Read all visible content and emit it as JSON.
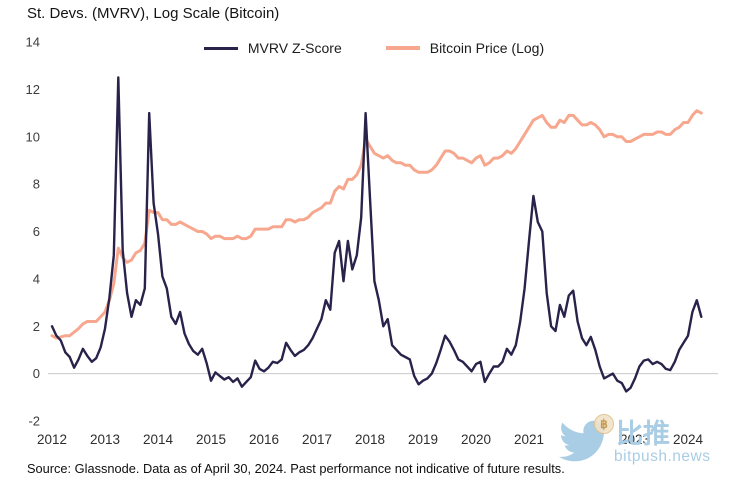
{
  "title": "St. Devs. (MVRV), Log Scale (Bitcoin)",
  "legend": [
    {
      "label": "MVRV Z-Score",
      "color": "#29224a"
    },
    {
      "label": "Bitcoin Price (Log)",
      "color": "#f7a78e"
    }
  ],
  "footer": "Source: Glassnode. Data as of April 30, 2024. Past performance not indicative of future results.",
  "watermark": {
    "name": "比推",
    "domain": "bitpush.news",
    "coin_symbol": "฿",
    "color": "#a9cde4"
  },
  "chart_data": {
    "type": "line",
    "title": "St. Devs. (MVRV), Log Scale (Bitcoin)",
    "xlabel": "",
    "ylabel": "",
    "ylim": [
      -2,
      14
    ],
    "xlim": [
      2011.85,
      2024.6
    ],
    "grid": "horizontal zero-line only",
    "legend_position": "top-center",
    "x_start": 2012,
    "points_per_year": 12,
    "x_ticks": [
      "2012",
      "2013",
      "2014",
      "2015",
      "2016",
      "2017",
      "2018",
      "2019",
      "2020",
      "2021",
      "2022",
      "2023",
      "2024"
    ],
    "y_ticks": [
      14,
      12,
      10,
      8,
      6,
      4,
      2,
      0,
      -2
    ],
    "series": [
      {
        "name": "MVRV Z-Score",
        "color": "#29224a",
        "width": 2.4,
        "values": [
          2.0,
          1.6,
          1.4,
          0.9,
          0.7,
          0.25,
          0.6,
          1.05,
          0.75,
          0.5,
          0.65,
          1.1,
          1.9,
          3.2,
          5.0,
          12.5,
          5.2,
          3.4,
          2.4,
          3.1,
          2.9,
          3.6,
          11.0,
          7.2,
          5.9,
          4.1,
          3.6,
          2.4,
          2.1,
          2.6,
          1.7,
          1.25,
          0.95,
          0.8,
          1.05,
          0.45,
          -0.3,
          0.05,
          -0.1,
          -0.25,
          -0.15,
          -0.35,
          -0.2,
          -0.55,
          -0.35,
          -0.15,
          0.55,
          0.2,
          0.1,
          0.25,
          0.5,
          0.45,
          0.6,
          1.3,
          1.0,
          0.75,
          0.9,
          1.0,
          1.2,
          1.5,
          1.9,
          2.3,
          3.1,
          2.7,
          5.1,
          5.6,
          3.9,
          5.6,
          4.4,
          5.0,
          6.6,
          11.0,
          7.4,
          3.9,
          3.1,
          2.0,
          2.3,
          1.2,
          1.0,
          0.8,
          0.7,
          0.6,
          -0.1,
          -0.45,
          -0.3,
          -0.2,
          0.0,
          0.45,
          1.0,
          1.6,
          1.35,
          1.0,
          0.6,
          0.5,
          0.3,
          0.1,
          0.4,
          0.5,
          -0.35,
          0.0,
          0.3,
          0.3,
          0.5,
          1.05,
          0.8,
          1.2,
          2.2,
          3.6,
          5.6,
          7.5,
          6.4,
          6.0,
          3.4,
          2.0,
          1.8,
          2.9,
          2.4,
          3.3,
          3.5,
          2.2,
          1.5,
          1.2,
          1.55,
          1.0,
          0.3,
          -0.2,
          -0.1,
          0.0,
          -0.3,
          -0.4,
          -0.75,
          -0.6,
          -0.2,
          0.3,
          0.55,
          0.6,
          0.4,
          0.5,
          0.4,
          0.2,
          0.15,
          0.5,
          1.0,
          1.3,
          1.6,
          2.6,
          3.1,
          2.4
        ]
      },
      {
        "name": "Bitcoin Price (Log)",
        "color": "#f7a78e",
        "width": 3,
        "values": [
          1.6,
          1.5,
          1.55,
          1.6,
          1.6,
          1.75,
          1.9,
          2.1,
          2.2,
          2.2,
          2.2,
          2.4,
          2.6,
          3.1,
          3.8,
          5.3,
          4.9,
          4.7,
          4.8,
          5.1,
          5.2,
          5.5,
          6.9,
          6.8,
          6.8,
          6.5,
          6.5,
          6.3,
          6.3,
          6.4,
          6.3,
          6.2,
          6.1,
          6.0,
          6.0,
          5.9,
          5.7,
          5.8,
          5.8,
          5.7,
          5.7,
          5.7,
          5.8,
          5.7,
          5.7,
          5.8,
          6.1,
          6.1,
          6.1,
          6.1,
          6.2,
          6.2,
          6.2,
          6.5,
          6.5,
          6.4,
          6.5,
          6.5,
          6.6,
          6.8,
          6.9,
          7.0,
          7.2,
          7.2,
          7.7,
          7.9,
          7.8,
          8.2,
          8.2,
          8.4,
          8.8,
          9.9,
          9.6,
          9.3,
          9.2,
          9.1,
          9.2,
          9.0,
          8.9,
          8.9,
          8.8,
          8.8,
          8.6,
          8.5,
          8.5,
          8.5,
          8.6,
          8.8,
          9.1,
          9.4,
          9.4,
          9.3,
          9.1,
          9.1,
          9.0,
          8.9,
          9.1,
          9.2,
          8.8,
          8.9,
          9.1,
          9.1,
          9.2,
          9.4,
          9.3,
          9.5,
          9.8,
          10.1,
          10.4,
          10.7,
          10.8,
          10.9,
          10.6,
          10.4,
          10.4,
          10.7,
          10.6,
          10.9,
          10.9,
          10.7,
          10.5,
          10.5,
          10.6,
          10.5,
          10.3,
          10.0,
          10.1,
          10.1,
          10.0,
          10.0,
          9.8,
          9.8,
          9.9,
          10.0,
          10.1,
          10.1,
          10.1,
          10.2,
          10.2,
          10.1,
          10.1,
          10.3,
          10.4,
          10.6,
          10.6,
          10.9,
          11.1,
          11.0
        ]
      }
    ]
  }
}
